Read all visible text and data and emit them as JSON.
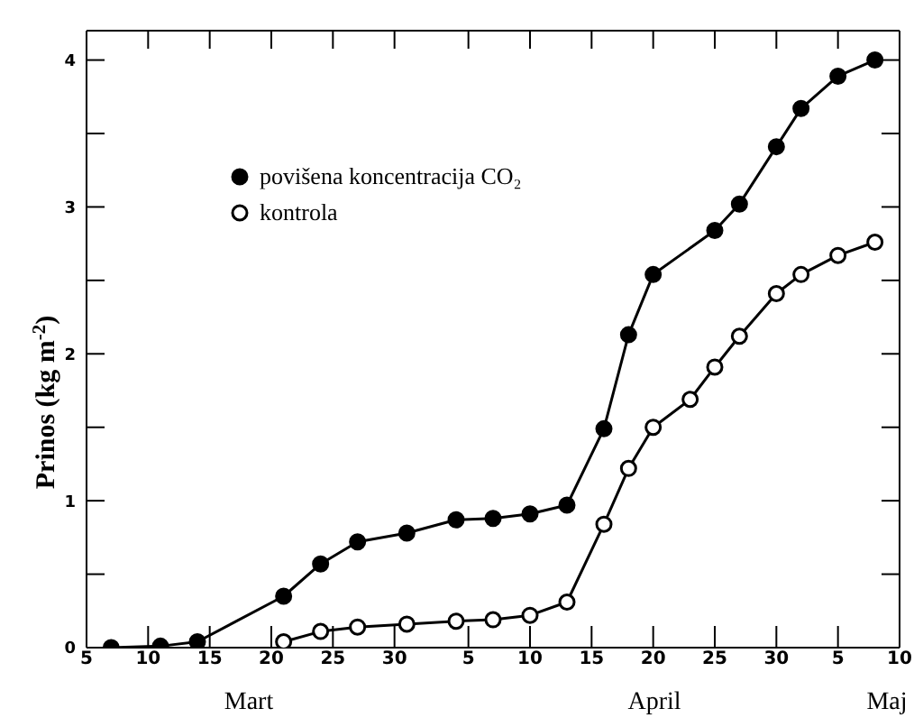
{
  "chart_data": {
    "type": "line",
    "ylabel": "Prinos (kg m$^{-2}$)",
    "x": [
      "--03-07",
      "--03-11",
      "--03-14",
      "--03-21",
      "--03-24",
      "--03-27",
      "--03-31",
      "--04-04",
      "--04-07",
      "--04-10",
      "--04-13",
      "--04-16",
      "--04-18",
      "--04-20",
      "--04-25",
      "--04-27",
      "--04-30",
      "--05-02",
      "--05-05",
      "--05-08"
    ],
    "series": [
      {
        "name": "povišena koncentracija CO₂",
        "color": "#000000",
        "values": [
          0,
          0.01,
          0.04,
          0.35,
          0.57,
          0.72,
          0.78,
          0.87,
          0.88,
          0.91,
          0.97,
          1.49,
          2.13,
          2.54,
          2.84,
          3.02,
          3.41,
          3.67,
          3.89,
          4.0
        ]
      },
      {
        "name": "kontrola",
        "color": "#000000",
        "x": [
          "--03-21",
          "--03-24",
          "--03-27",
          "--03-31",
          "--04-04",
          "--04-07",
          "--04-10",
          "--04-13",
          "--04-16",
          "--04-18",
          "--04-20",
          "--04-23",
          "--04-25",
          "--04-27",
          "--04-30",
          "--05-02",
          "--05-05",
          "--05-08"
        ],
        "values": [
          0.04,
          0.11,
          0.14,
          0.16,
          0.18,
          0.19,
          0.22,
          0.31,
          0.84,
          1.22,
          1.5,
          1.69,
          1.91,
          2.12,
          2.41,
          2.54,
          2.67,
          2.76
        ]
      }
    ],
    "xlim": [
      "--03-05",
      "--05-10"
    ],
    "xticks": [
      {
        "value": "--03-05",
        "label": "5"
      },
      {
        "value": "--03-10",
        "label": "10"
      },
      {
        "value": "--03-15",
        "label": "15"
      },
      {
        "value": "--03-20",
        "label": "20"
      },
      {
        "value": "--03-25",
        "label": "25"
      },
      {
        "value": "--03-30",
        "label": "30"
      },
      {
        "value": "--04-05",
        "label": "5"
      },
      {
        "value": "--04-10",
        "label": "10"
      },
      {
        "value": "--04-15",
        "label": "15"
      },
      {
        "value": "--04-20",
        "label": "20"
      },
      {
        "value": "--04-25",
        "label": "25"
      },
      {
        "value": "--04-30",
        "label": "30"
      },
      {
        "value": "--05-05",
        "label": "5"
      },
      {
        "value": "--05-10",
        "label": "10"
      }
    ],
    "ylim": [
      0,
      4.2
    ],
    "yticks": [
      0,
      {
        "value": 0.5,
        "label": null
      },
      1,
      {
        "value": 1.5,
        "label": null
      },
      2,
      {
        "value": 2.5,
        "label": null
      },
      3,
      {
        "value": 3.5,
        "label": null
      },
      4
    ],
    "annotations": [
      "Mart",
      "April",
      "Maj"
    ],
    "marker": "circle",
    "line_style": "solid",
    "grid": false,
    "legend": "top left"
  }
}
